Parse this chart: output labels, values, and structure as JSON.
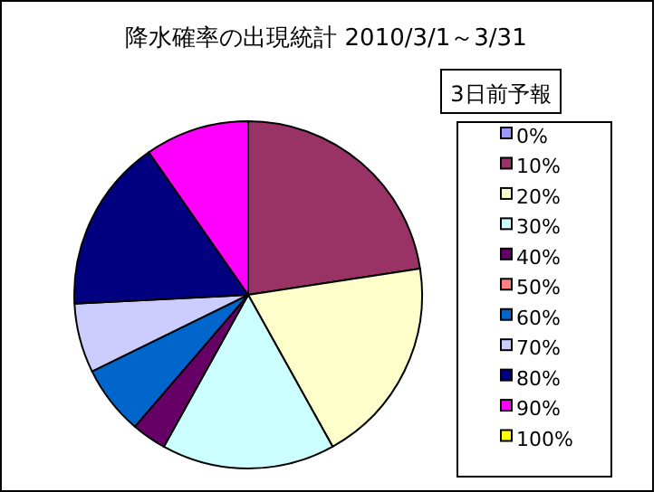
{
  "chart_data": {
    "type": "pie",
    "title": "降水確率の出現統計 2010/3/1～3/31",
    "legend_title": "3日前予報",
    "legend": "right",
    "categories": [
      "0%",
      "10%",
      "20%",
      "30%",
      "40%",
      "50%",
      "60%",
      "70%",
      "80%",
      "90%",
      "100%"
    ],
    "values": [
      0,
      22.58,
      19.35,
      16.13,
      3.23,
      0,
      6.45,
      6.45,
      16.13,
      9.68,
      0
    ],
    "colors": [
      "#9999ff",
      "#993366",
      "#ffffcc",
      "#ccffff",
      "#660066",
      "#ff8080",
      "#0066cc",
      "#ccccff",
      "#000080",
      "#ff00ff",
      "#ffff00"
    ]
  }
}
